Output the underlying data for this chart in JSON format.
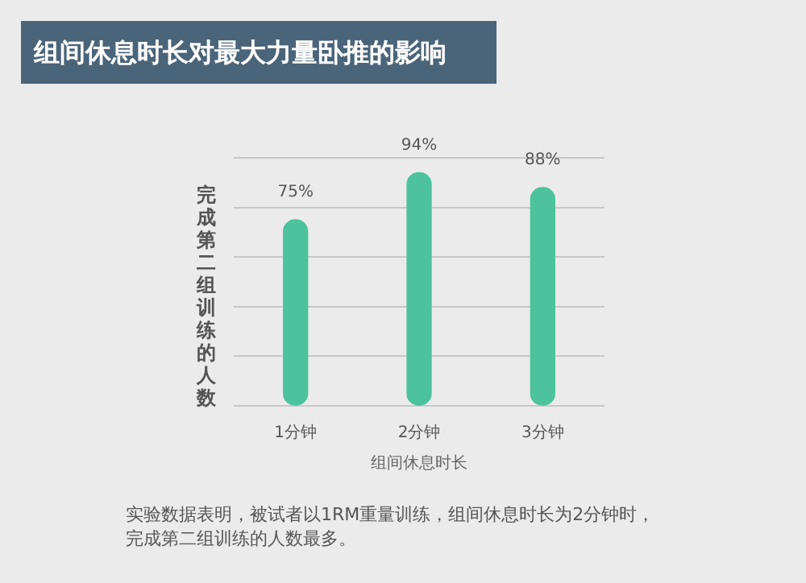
{
  "chart_data": {
    "type": "bar",
    "title": "组间休息时长对最大力量卧推的影响",
    "xlabel": "组间休息时长",
    "ylabel": "完成第二组训练的人数",
    "categories": [
      "1分钟",
      "2分钟",
      "3分钟"
    ],
    "values": [
      75,
      94,
      88
    ],
    "value_labels": [
      "75%",
      "94%",
      "88%"
    ],
    "color": "#4cc39c",
    "ylim": [
      0,
      100
    ],
    "yticks": [
      0,
      20,
      40,
      60,
      80,
      100
    ],
    "tick_labels": "x",
    "grid": "y",
    "legend": false,
    "annotations": [
      "实验数据表明，被试者以1RM重量训练，组间休息时长为2分钟时，完成第二组训练的人数最多。"
    ]
  }
}
